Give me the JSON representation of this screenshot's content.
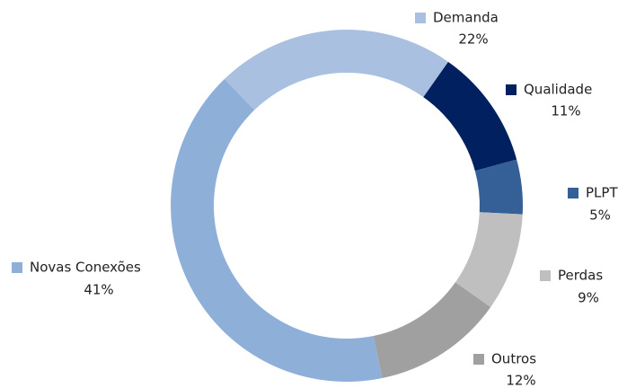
{
  "chart_data": {
    "type": "donut",
    "categories": [
      "Demanda",
      "Qualidade",
      "PLPT",
      "Perdas",
      "Outros",
      "Novas Conexões"
    ],
    "values": [
      22,
      11,
      5,
      9,
      12,
      41
    ],
    "value_labels": [
      "22%",
      "11%",
      "5%",
      "9%",
      "12%",
      "41%"
    ],
    "colors": [
      "#a9c0e0",
      "#002060",
      "#355f97",
      "#bfbfbf",
      "#a0a0a0",
      "#8eafd8"
    ]
  }
}
